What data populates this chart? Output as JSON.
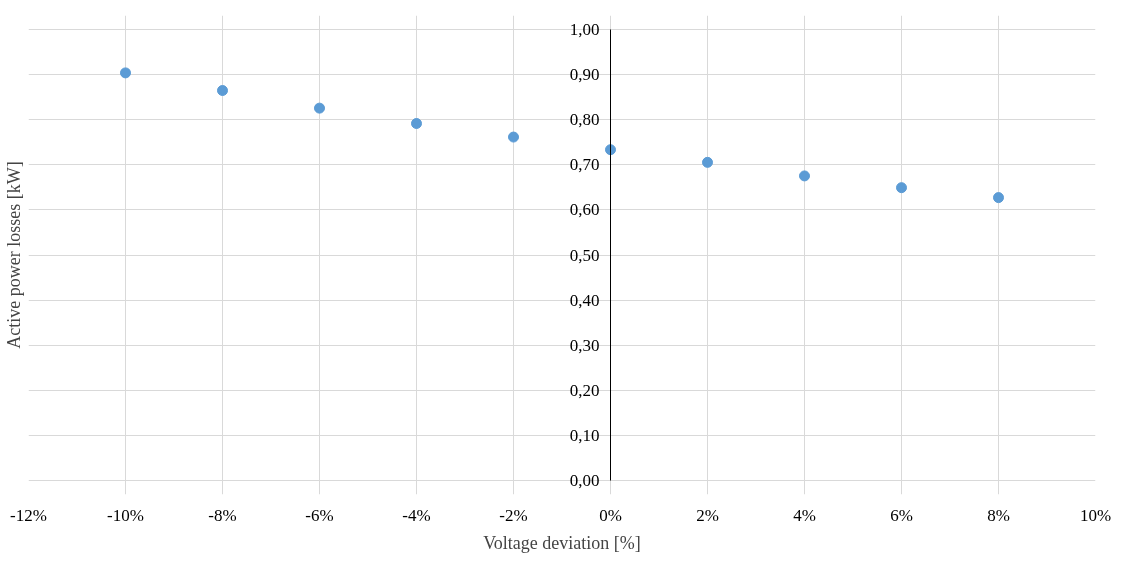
{
  "chart_data": {
    "type": "scatter",
    "xlabel": "Voltage deviation [%]",
    "ylabel": "Active power losses [kW]",
    "x": [
      -10,
      -8,
      -6,
      -4,
      -2,
      0,
      2,
      4,
      6,
      8
    ],
    "series": [
      {
        "color": "#5b9bd5",
        "values": [
          0.903,
          0.864,
          0.825,
          0.791,
          0.761,
          0.733,
          0.705,
          0.675,
          0.649,
          0.627
        ]
      }
    ],
    "xlim": [
      -12,
      10
    ],
    "xticks": [
      {
        "value": -12,
        "label": "-12%"
      },
      {
        "value": -10,
        "label": "-10%"
      },
      {
        "value": -8,
        "label": "-8%"
      },
      {
        "value": -6,
        "label": "-6%"
      },
      {
        "value": -4,
        "label": "-4%"
      },
      {
        "value": -2,
        "label": "-2%"
      },
      {
        "value": 0,
        "label": "0%"
      },
      {
        "value": 2,
        "label": "2%"
      },
      {
        "value": 4,
        "label": "4%"
      },
      {
        "value": 6,
        "label": "6%"
      },
      {
        "value": 8,
        "label": "8%"
      },
      {
        "value": 10,
        "label": "10%"
      }
    ],
    "ylim": [
      0,
      1
    ],
    "yticks": [
      {
        "value": 0,
        "label": "0,00"
      },
      {
        "value": 0.1,
        "label": "0,10"
      },
      {
        "value": 0.2,
        "label": "0,20"
      },
      {
        "value": 0.3,
        "label": "0,30"
      },
      {
        "value": 0.4,
        "label": "0,40"
      },
      {
        "value": 0.5,
        "label": "0,50"
      },
      {
        "value": 0.6,
        "label": "0,60"
      },
      {
        "value": 0.7,
        "label": "0,70"
      },
      {
        "value": 0.8,
        "label": "0,80"
      },
      {
        "value": 0.9,
        "label": "0,90"
      },
      {
        "value": 1.0,
        "label": "1,00"
      }
    ],
    "grid": true,
    "marker": "circle"
  }
}
